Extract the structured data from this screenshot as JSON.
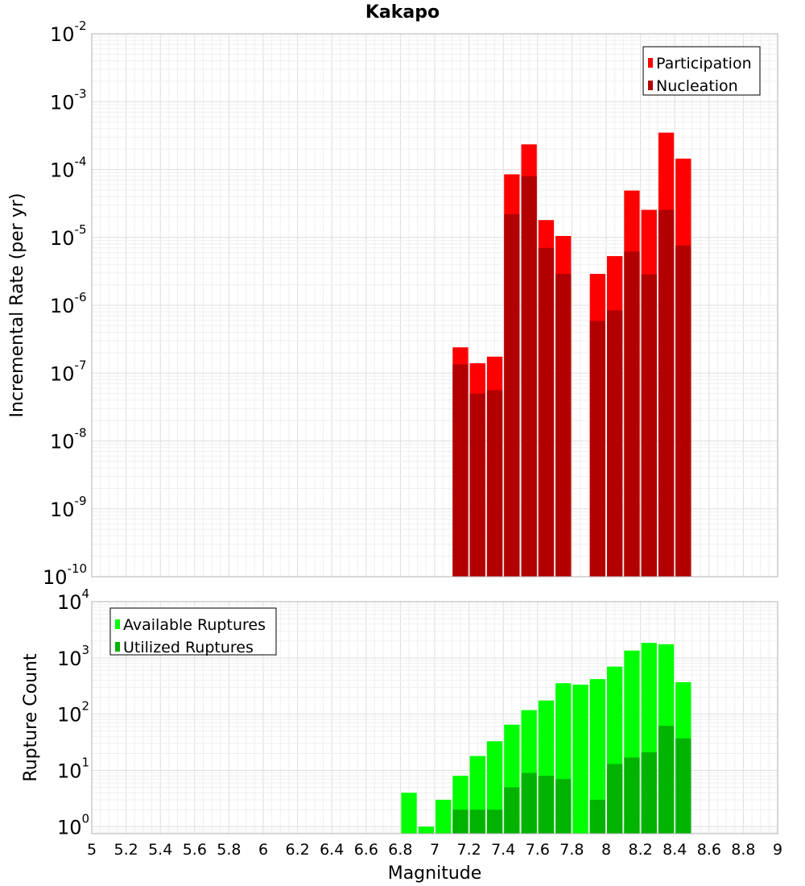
{
  "title": "Kakapo",
  "xlabel": "Magnitude",
  "x_tick_labels": [
    "5",
    "5.2",
    "5.4",
    "5.6",
    "5.8",
    "6",
    "6.2",
    "6.4",
    "6.6",
    "6.8",
    "7",
    "7.2",
    "7.4",
    "7.6",
    "7.8",
    "8",
    "8.2",
    "8.4",
    "8.6",
    "8.8",
    "9"
  ],
  "chart_data": [
    {
      "type": "bar",
      "ylabel": "Incremental Rate (per yr)",
      "y_scale": "log",
      "ylim": [
        1e-10,
        0.01
      ],
      "xlim": [
        5,
        9
      ],
      "bar_width": 0.1,
      "grid": true,
      "legend_position": "top-right",
      "y_tick_labels": [
        {
          "base": "10",
          "exp": "-10"
        },
        {
          "base": "10",
          "exp": "-9"
        },
        {
          "base": "10",
          "exp": "-8"
        },
        {
          "base": "10",
          "exp": "-7"
        },
        {
          "base": "10",
          "exp": "-6"
        },
        {
          "base": "10",
          "exp": "-5"
        },
        {
          "base": "10",
          "exp": "-4"
        },
        {
          "base": "10",
          "exp": "-3"
        },
        {
          "base": "10",
          "exp": "-2"
        }
      ],
      "x": [
        7.15,
        7.25,
        7.35,
        7.45,
        7.55,
        7.65,
        7.75,
        7.95,
        8.05,
        8.15,
        8.25,
        8.35,
        8.45
      ],
      "series": [
        {
          "name": "Participation",
          "color": "#ff0000",
          "values": [
            2.4e-07,
            1.4e-07,
            1.75e-07,
            8.5e-05,
            0.000235,
            1.8e-05,
            1.05e-05,
            2.9e-06,
            5.3e-06,
            4.9e-05,
            2.55e-05,
            0.00035,
            0.000145
          ]
        },
        {
          "name": "Nucleation",
          "color": "#b20000",
          "values": [
            1.35e-07,
            5e-08,
            5.6e-08,
            2.2e-05,
            8e-05,
            7e-06,
            2.9e-06,
            5.9e-07,
            8.4e-07,
            6.2e-06,
            2.85e-06,
            2.55e-05,
            7.6e-06
          ]
        }
      ]
    },
    {
      "type": "bar",
      "ylabel": "Rupture Count",
      "y_scale": "log",
      "ylim": [
        0.75,
        10000
      ],
      "xlim": [
        5,
        9
      ],
      "bar_width": 0.1,
      "grid": true,
      "legend_position": "top-left",
      "y_tick_labels": [
        {
          "value": 1,
          "base": "10",
          "exp": "0"
        },
        {
          "value": 10,
          "base": "10",
          "exp": "1"
        },
        {
          "value": 100,
          "base": "10",
          "exp": "2"
        },
        {
          "value": 1000,
          "base": "10",
          "exp": "3"
        },
        {
          "value": 10000,
          "base": "10",
          "exp": "4"
        }
      ],
      "series": [
        {
          "name": "Available Ruptures",
          "color": "#00ff00",
          "x": [
            6.85,
            6.95,
            7.05,
            7.15,
            7.25,
            7.35,
            7.45,
            7.55,
            7.65,
            7.75,
            7.85,
            7.95,
            8.05,
            8.15,
            8.25,
            8.35,
            8.45
          ],
          "values": [
            4,
            1,
            3,
            8,
            18,
            33,
            65,
            118,
            175,
            355,
            335,
            420,
            700,
            1350,
            1850,
            1750,
            370
          ]
        },
        {
          "name": "Utilized Ruptures",
          "color": "#00b300",
          "x": [
            7.15,
            7.25,
            7.35,
            7.45,
            7.55,
            7.65,
            7.75,
            7.95,
            8.05,
            8.15,
            8.25,
            8.35,
            8.45
          ],
          "values": [
            2,
            2,
            2,
            5,
            9,
            8,
            7,
            3,
            13,
            17,
            21,
            62,
            37
          ]
        }
      ]
    }
  ]
}
